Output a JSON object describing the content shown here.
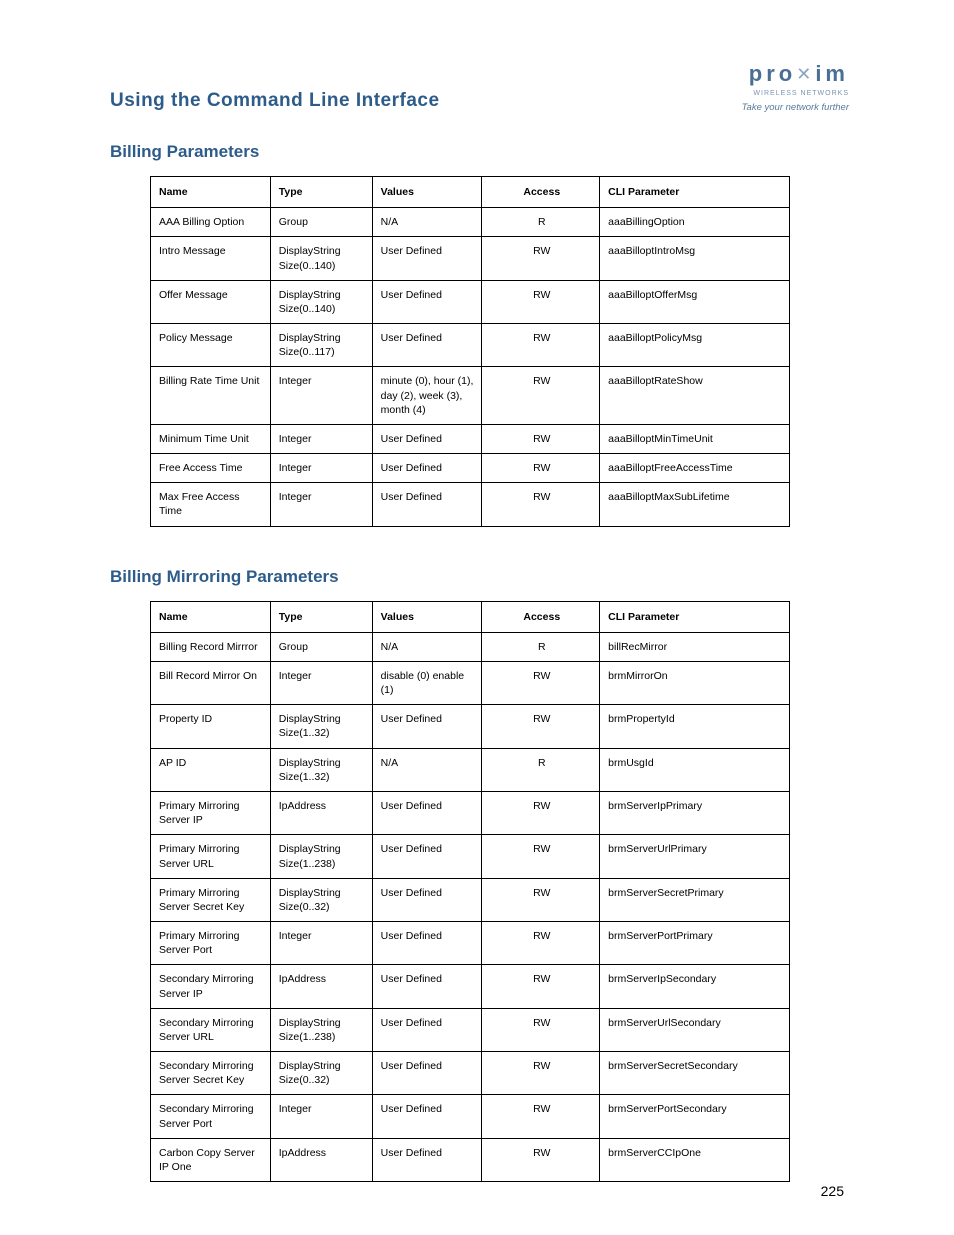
{
  "logo": {
    "brand_pro": "pro",
    "brand_x": "✕",
    "brand_im": "im",
    "sub": "WIRELESS NETWORKS",
    "tag": "Take your network further"
  },
  "page_title": "Using the Command Line Interface",
  "page_number": "225",
  "section1": {
    "title": "Billing Parameters",
    "headers": {
      "c1": "Name",
      "c2": "Type",
      "c3": "Values",
      "c4": "Access",
      "c5": "CLI Parameter"
    },
    "rows": [
      {
        "c1": "AAA Billing Option",
        "c2": "Group",
        "c3": "N/A",
        "c4": "R",
        "c5": "aaaBillingOption"
      },
      {
        "c1": "Intro Message",
        "c2": "DisplayString Size(0..140)",
        "c3": "User Defined",
        "c4": "RW",
        "c5": "aaaBilloptIntroMsg"
      },
      {
        "c1": "Offer Message",
        "c2": "DisplayString Size(0..140)",
        "c3": "User Defined",
        "c4": "RW",
        "c5": "aaaBilloptOfferMsg"
      },
      {
        "c1": "Policy Message",
        "c2": "DisplayString Size(0..117)",
        "c3": "User Defined",
        "c4": "RW",
        "c5": "aaaBilloptPolicyMsg"
      },
      {
        "c1": "Billing Rate Time Unit",
        "c2": "Integer",
        "c3": "minute (0), hour (1), day (2), week (3), month (4)",
        "c4": "RW",
        "c5": "aaaBilloptRateShow"
      },
      {
        "c1": "Minimum Time Unit",
        "c2": "Integer",
        "c3": "User Defined",
        "c4": "RW",
        "c5": "aaaBilloptMinTimeUnit"
      },
      {
        "c1": "Free Access Time",
        "c2": "Integer",
        "c3": "User Defined",
        "c4": "RW",
        "c5": "aaaBilloptFreeAccessTime"
      },
      {
        "c1": "Max Free Access Time",
        "c2": "Integer",
        "c3": "User Defined",
        "c4": "RW",
        "c5": "aaaBilloptMaxSubLifetime"
      }
    ]
  },
  "section2": {
    "title": "Billing Mirroring Parameters",
    "headers": {
      "c1": "Name",
      "c2": "Type",
      "c3": "Values",
      "c4": "Access",
      "c5": "CLI Parameter"
    },
    "rows": [
      {
        "c1": "Billing Record Mirrror",
        "c2": "Group",
        "c3": "N/A",
        "c4": "R",
        "c5": "billRecMirror"
      },
      {
        "c1": "Bill Record Mirror On",
        "c2": "Integer",
        "c3": "disable (0) enable (1)",
        "c4": "RW",
        "c5": "brmMirrorOn"
      },
      {
        "c1": "Property ID",
        "c2": "DisplayString Size(1..32)",
        "c3": "User Defined",
        "c4": "RW",
        "c5": "brmPropertyId"
      },
      {
        "c1": "AP ID",
        "c2": "DisplayString Size(1..32)",
        "c3": "N/A",
        "c4": "R",
        "c5": "brmUsgId"
      },
      {
        "c1": "Primary Mirroring Server IP",
        "c2": "IpAddress",
        "c3": "User Defined",
        "c4": "RW",
        "c5": "brmServerIpPrimary"
      },
      {
        "c1": "Primary Mirroring Server URL",
        "c2": "DisplayString Size(1..238)",
        "c3": "User Defined",
        "c4": "RW",
        "c5": "brmServerUrlPrimary"
      },
      {
        "c1": "Primary Mirroring Server Secret Key",
        "c2": "DisplayString Size(0..32)",
        "c3": "User Defined",
        "c4": "RW",
        "c5": "brmServerSecretPrimary"
      },
      {
        "c1": "Primary Mirroring Server Port",
        "c2": "Integer",
        "c3": "User Defined",
        "c4": "RW",
        "c5": "brmServerPortPrimary"
      },
      {
        "c1": "Secondary Mirroring Server IP",
        "c2": "IpAddress",
        "c3": "User Defined",
        "c4": "RW",
        "c5": "brmServerIpSecondary"
      },
      {
        "c1": "Secondary Mirroring Server URL",
        "c2": "DisplayString Size(1..238)",
        "c3": "User Defined",
        "c4": "RW",
        "c5": "brmServerUrlSecondary"
      },
      {
        "c1": "Secondary Mirroring Server Secret Key",
        "c2": "DisplayString Size(0..32)",
        "c3": "User Defined",
        "c4": "RW",
        "c5": "brmServerSecretSecondary"
      },
      {
        "c1": "Secondary Mirroring Server Port",
        "c2": "Integer",
        "c3": "User Defined",
        "c4": "RW",
        "c5": "brmServerPortSecondary"
      },
      {
        "c1": "Carbon Copy Server IP One",
        "c2": "IpAddress",
        "c3": "User Defined",
        "c4": "RW",
        "c5": "brmServerCCIpOne"
      }
    ]
  }
}
